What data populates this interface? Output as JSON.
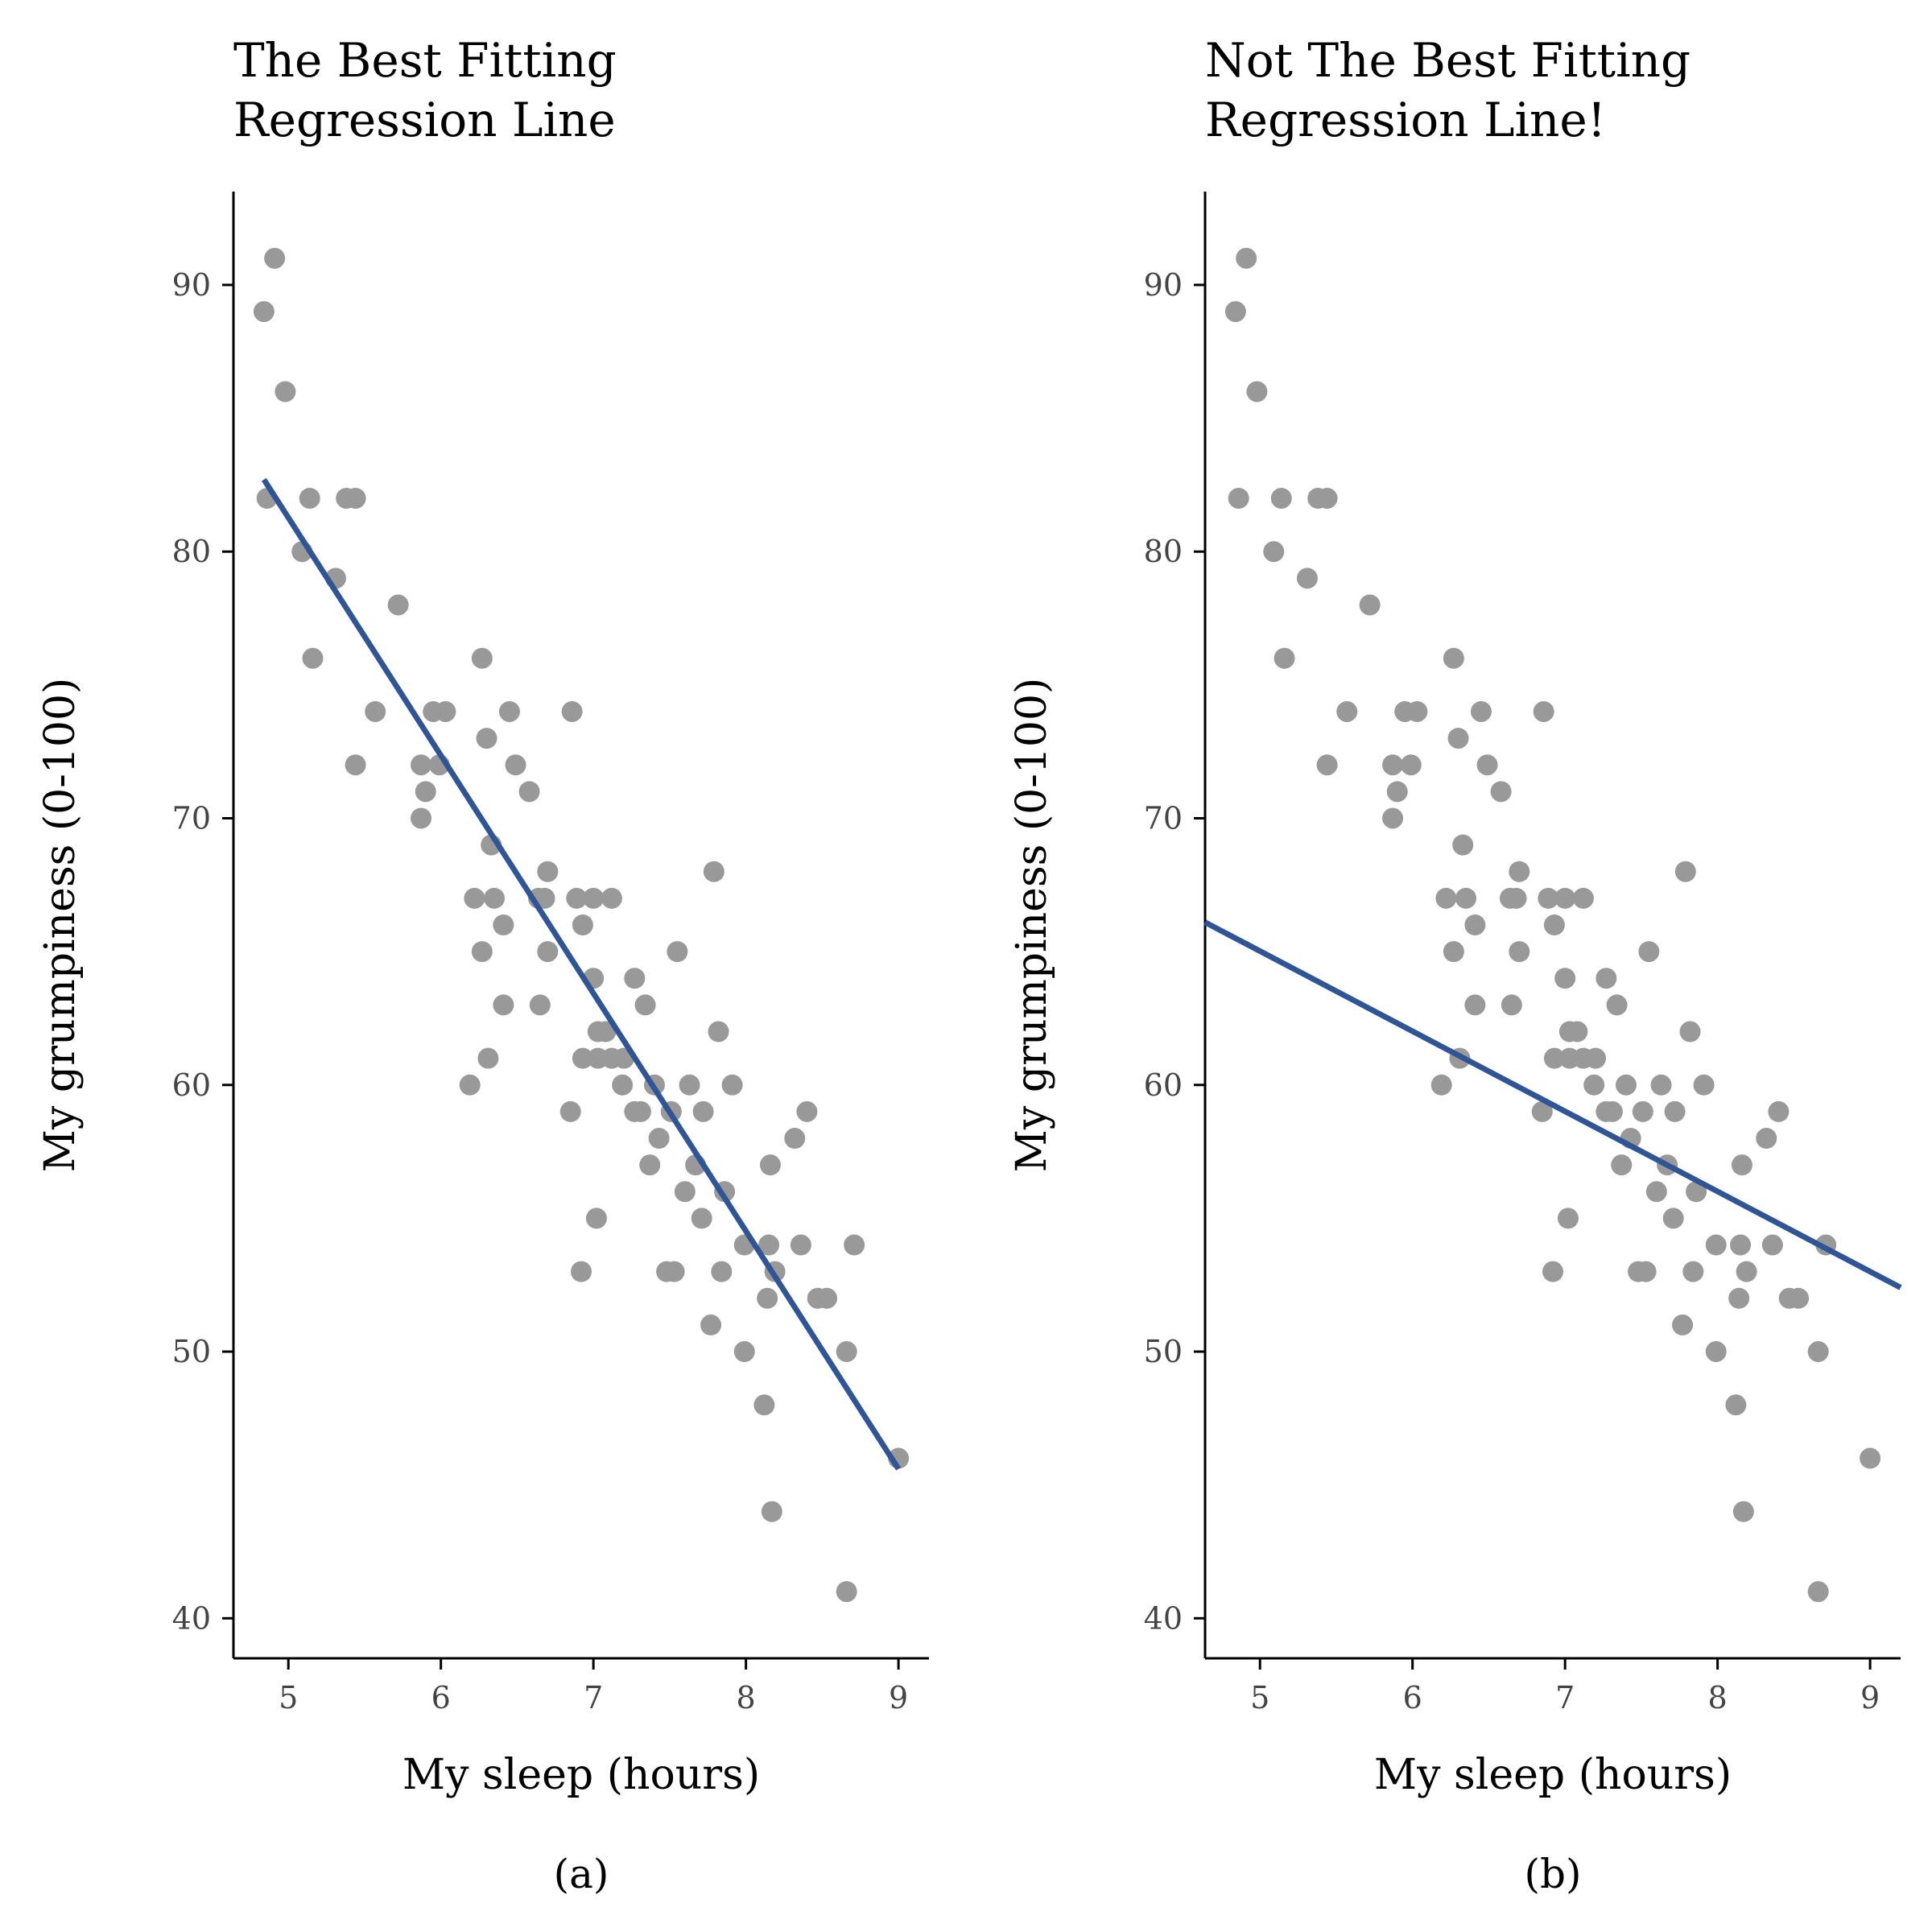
{
  "colors": {
    "points": "#999999",
    "regression_line": "#2f5597",
    "axis": "#000000",
    "tick_labels": "#444444"
  },
  "chart_data": [
    {
      "type": "scatter",
      "title": "The Best Fitting Regression Line",
      "title_lines": [
        "The Best Fitting",
        "Regression Line"
      ],
      "caption": "(a)",
      "xlabel": "My sleep (hours)",
      "ylabel": "My grumpiness (0-100)",
      "xlim": [
        4.64,
        9.2
      ],
      "ylim": [
        38.5,
        93.5
      ],
      "xticks": [
        5,
        6,
        7,
        8,
        9
      ],
      "yticks": [
        40,
        50,
        60,
        70,
        80,
        90
      ],
      "grid": false,
      "line": {
        "x": [
          4.84,
          9.0
        ],
        "y": [
          82.7,
          45.6
        ]
      },
      "points": [
        [
          4.84,
          89
        ],
        [
          4.91,
          91
        ],
        [
          4.98,
          86
        ],
        [
          4.86,
          82
        ],
        [
          5.14,
          82
        ],
        [
          5.38,
          82
        ],
        [
          5.44,
          82
        ],
        [
          5.09,
          80
        ],
        [
          5.31,
          79
        ],
        [
          5.16,
          76
        ],
        [
          5.72,
          78
        ],
        [
          5.57,
          74
        ],
        [
          5.44,
          72
        ],
        [
          5.95,
          74
        ],
        [
          6.03,
          74
        ],
        [
          5.87,
          72
        ],
        [
          5.99,
          72
        ],
        [
          5.9,
          71
        ],
        [
          5.87,
          70
        ],
        [
          6.27,
          76
        ],
        [
          6.45,
          74
        ],
        [
          6.86,
          74
        ],
        [
          6.3,
          73
        ],
        [
          6.49,
          72
        ],
        [
          6.58,
          71
        ],
        [
          6.33,
          69
        ],
        [
          6.7,
          68
        ],
        [
          6.22,
          67
        ],
        [
          6.35,
          67
        ],
        [
          6.64,
          67
        ],
        [
          6.68,
          67
        ],
        [
          6.89,
          67
        ],
        [
          7.0,
          67
        ],
        [
          7.12,
          67
        ],
        [
          6.41,
          66
        ],
        [
          6.93,
          66
        ],
        [
          6.27,
          65
        ],
        [
          6.7,
          65
        ],
        [
          7.55,
          65
        ],
        [
          7.0,
          64
        ],
        [
          7.27,
          64
        ],
        [
          6.41,
          63
        ],
        [
          6.65,
          63
        ],
        [
          7.34,
          63
        ],
        [
          7.79,
          68
        ],
        [
          7.82,
          62
        ],
        [
          7.03,
          62
        ],
        [
          7.08,
          62
        ],
        [
          6.31,
          61
        ],
        [
          6.93,
          61
        ],
        [
          7.03,
          61
        ],
        [
          7.12,
          61
        ],
        [
          7.2,
          61
        ],
        [
          6.19,
          60
        ],
        [
          7.19,
          60
        ],
        [
          7.4,
          60
        ],
        [
          7.63,
          60
        ],
        [
          7.91,
          60
        ],
        [
          6.85,
          59
        ],
        [
          7.27,
          59
        ],
        [
          7.31,
          59
        ],
        [
          7.51,
          59
        ],
        [
          7.72,
          59
        ],
        [
          8.4,
          59
        ],
        [
          7.43,
          58
        ],
        [
          8.32,
          58
        ],
        [
          7.37,
          57
        ],
        [
          7.67,
          57
        ],
        [
          8.16,
          57
        ],
        [
          7.6,
          56
        ],
        [
          7.86,
          56
        ],
        [
          7.02,
          55
        ],
        [
          7.71,
          55
        ],
        [
          7.99,
          54
        ],
        [
          8.15,
          54
        ],
        [
          8.36,
          54
        ],
        [
          8.71,
          54
        ],
        [
          6.92,
          53
        ],
        [
          7.48,
          53
        ],
        [
          7.53,
          53
        ],
        [
          7.84,
          53
        ],
        [
          8.19,
          53
        ],
        [
          8.14,
          52
        ],
        [
          8.47,
          52
        ],
        [
          8.53,
          52
        ],
        [
          7.77,
          51
        ],
        [
          7.99,
          50
        ],
        [
          8.66,
          50
        ],
        [
          8.12,
          48
        ],
        [
          9.0,
          46
        ],
        [
          8.17,
          44
        ],
        [
          8.66,
          41
        ]
      ]
    },
    {
      "type": "scatter",
      "title": "Not The Best Fitting Regression Line!",
      "title_lines": [
        "Not The Best Fitting",
        "Regression Line!"
      ],
      "caption": "(b)",
      "xlabel": "My sleep (hours)",
      "ylabel": "My grumpiness (0-100)",
      "xlim": [
        4.64,
        9.2
      ],
      "ylim": [
        38.5,
        93.5
      ],
      "xticks": [
        5,
        6,
        7,
        8,
        9
      ],
      "yticks": [
        40,
        50,
        60,
        70,
        80,
        90
      ],
      "grid": false,
      "line": {
        "x": [
          4.64,
          9.2
        ],
        "y": [
          66.1,
          52.4
        ]
      },
      "points": [
        [
          4.84,
          89
        ],
        [
          4.91,
          91
        ],
        [
          4.98,
          86
        ],
        [
          4.86,
          82
        ],
        [
          5.14,
          82
        ],
        [
          5.38,
          82
        ],
        [
          5.44,
          82
        ],
        [
          5.09,
          80
        ],
        [
          5.31,
          79
        ],
        [
          5.16,
          76
        ],
        [
          5.72,
          78
        ],
        [
          5.57,
          74
        ],
        [
          5.44,
          72
        ],
        [
          5.95,
          74
        ],
        [
          6.03,
          74
        ],
        [
          5.87,
          72
        ],
        [
          5.99,
          72
        ],
        [
          5.9,
          71
        ],
        [
          5.87,
          70
        ],
        [
          6.27,
          76
        ],
        [
          6.45,
          74
        ],
        [
          6.86,
          74
        ],
        [
          6.3,
          73
        ],
        [
          6.49,
          72
        ],
        [
          6.58,
          71
        ],
        [
          6.33,
          69
        ],
        [
          6.7,
          68
        ],
        [
          6.22,
          67
        ],
        [
          6.35,
          67
        ],
        [
          6.64,
          67
        ],
        [
          6.68,
          67
        ],
        [
          6.89,
          67
        ],
        [
          7.0,
          67
        ],
        [
          7.12,
          67
        ],
        [
          6.41,
          66
        ],
        [
          6.93,
          66
        ],
        [
          6.27,
          65
        ],
        [
          6.7,
          65
        ],
        [
          7.55,
          65
        ],
        [
          7.0,
          64
        ],
        [
          7.27,
          64
        ],
        [
          6.41,
          63
        ],
        [
          6.65,
          63
        ],
        [
          7.34,
          63
        ],
        [
          7.79,
          68
        ],
        [
          7.82,
          62
        ],
        [
          7.03,
          62
        ],
        [
          7.08,
          62
        ],
        [
          6.31,
          61
        ],
        [
          6.93,
          61
        ],
        [
          7.03,
          61
        ],
        [
          7.12,
          61
        ],
        [
          7.2,
          61
        ],
        [
          6.19,
          60
        ],
        [
          7.19,
          60
        ],
        [
          7.4,
          60
        ],
        [
          7.63,
          60
        ],
        [
          7.91,
          60
        ],
        [
          6.85,
          59
        ],
        [
          7.27,
          59
        ],
        [
          7.31,
          59
        ],
        [
          7.51,
          59
        ],
        [
          7.72,
          59
        ],
        [
          8.4,
          59
        ],
        [
          7.43,
          58
        ],
        [
          8.32,
          58
        ],
        [
          7.37,
          57
        ],
        [
          7.67,
          57
        ],
        [
          8.16,
          57
        ],
        [
          7.6,
          56
        ],
        [
          7.86,
          56
        ],
        [
          7.02,
          55
        ],
        [
          7.71,
          55
        ],
        [
          7.99,
          54
        ],
        [
          8.15,
          54
        ],
        [
          8.36,
          54
        ],
        [
          8.71,
          54
        ],
        [
          6.92,
          53
        ],
        [
          7.48,
          53
        ],
        [
          7.53,
          53
        ],
        [
          7.84,
          53
        ],
        [
          8.19,
          53
        ],
        [
          8.14,
          52
        ],
        [
          8.47,
          52
        ],
        [
          8.53,
          52
        ],
        [
          7.77,
          51
        ],
        [
          7.99,
          50
        ],
        [
          8.66,
          50
        ],
        [
          8.12,
          48
        ],
        [
          9.0,
          46
        ],
        [
          8.17,
          44
        ],
        [
          8.66,
          41
        ]
      ]
    }
  ]
}
